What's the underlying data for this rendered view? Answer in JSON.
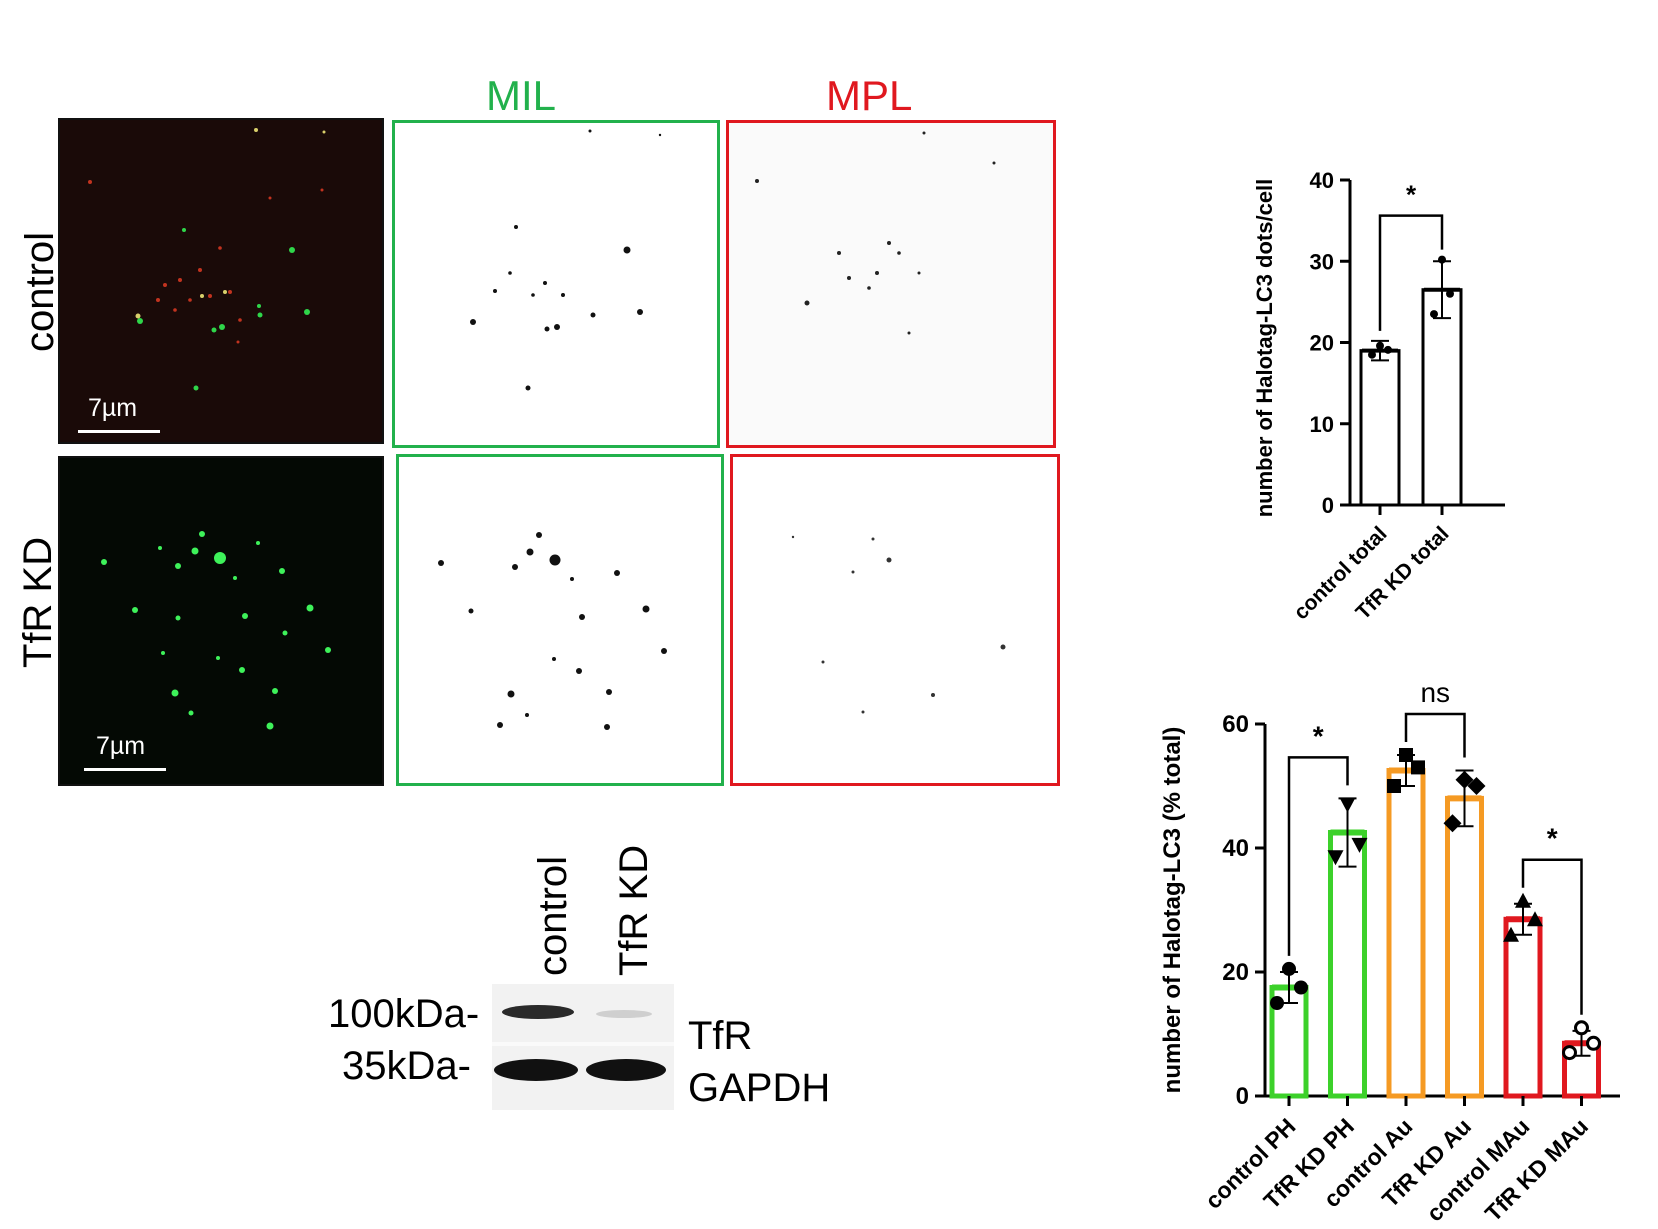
{
  "figure": {
    "columns": {
      "mil": "MIL",
      "mpl": "MPL"
    },
    "rows": {
      "control": "control",
      "tfr_kd": "TfR KD"
    },
    "scale_bar": "7µm",
    "colors": {
      "green": "#22b14c",
      "red": "#e0181f",
      "orange": "#f59a23",
      "lime": "#3cd12a"
    }
  },
  "western_blot": {
    "lanes": [
      "control",
      "TfR KD"
    ],
    "markers": [
      "100kDa-",
      "35kDa-"
    ],
    "proteins": [
      "TfR",
      "GAPDH"
    ]
  },
  "chart_data": [
    {
      "type": "bar",
      "categories": [
        "control total",
        "TfR KD total"
      ],
      "values": [
        19,
        26.5
      ],
      "errors": [
        1.2,
        3.5
      ],
      "points": [
        [
          18.5,
          19.1,
          19.6
        ],
        [
          23.5,
          26,
          30.2
        ]
      ],
      "title": "",
      "ylabel": "number of Halotag-LC3  dots/cell",
      "xlabel": "",
      "ylim": [
        0,
        40
      ],
      "yticks": [
        "0",
        "10",
        "20",
        "30",
        "40"
      ],
      "significance": [
        {
          "from": 0,
          "to": 1,
          "label": "*"
        }
      ],
      "bar_colors": [
        "#000000",
        "#000000"
      ]
    },
    {
      "type": "bar",
      "categories": [
        "control PH",
        "TfR KD PH",
        "control Au",
        "TfR KD Au",
        "control MAu",
        "TfR KD MAu"
      ],
      "values": [
        17.5,
        42.5,
        52.5,
        48,
        28.5,
        8.5
      ],
      "errors": [
        2.5,
        5.5,
        2.5,
        4.5,
        2.5,
        2
      ],
      "points": [
        [
          15,
          17.5,
          20.5
        ],
        [
          38.5,
          40.5,
          47
        ],
        [
          50,
          53,
          55
        ],
        [
          44,
          50,
          51
        ],
        [
          26,
          28.5,
          31.5
        ],
        [
          7,
          8.5,
          11
        ]
      ],
      "markers": [
        "circle",
        "triangle-down",
        "square",
        "diamond",
        "triangle-up",
        "open-circle"
      ],
      "title": "",
      "ylabel": "number of Halotag-LC3  (% total)",
      "xlabel": "",
      "ylim": [
        0,
        60
      ],
      "yticks": [
        "0",
        "20",
        "40",
        "60"
      ],
      "significance": [
        {
          "from": 0,
          "to": 1,
          "label": "*"
        },
        {
          "from": 2,
          "to": 3,
          "label": "ns"
        },
        {
          "from": 4,
          "to": 5,
          "label": "*"
        }
      ],
      "bar_colors": [
        "#3cd12a",
        "#3cd12a",
        "#f59a23",
        "#f59a23",
        "#e0181f",
        "#e0181f"
      ]
    }
  ]
}
